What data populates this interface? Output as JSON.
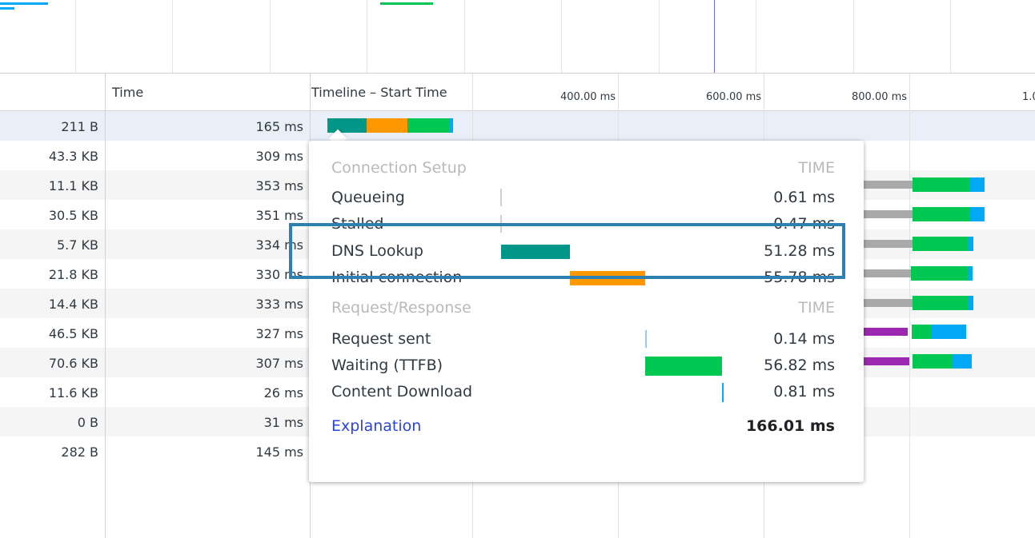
{
  "colors": {
    "queue": "#a9a9a9",
    "dns": "#009688",
    "initial_connection": "#ff9800",
    "ssl": "#9c27b0",
    "waiting": "#00c853",
    "download": "#03a9f4",
    "request": "#9ec8e6",
    "highlight": "#2e80b3",
    "link": "#2a45d8"
  },
  "header": {
    "time": "Time",
    "timeline": "Timeline – Start Time",
    "ticks": [
      "400.00 ms",
      "600.00 ms",
      "800.00 ms",
      "1.0"
    ]
  },
  "rows": [
    {
      "size": "211 B",
      "time": "165 ms"
    },
    {
      "size": "43.3 KB",
      "time": "309 ms"
    },
    {
      "size": "11.1 KB",
      "time": "353 ms"
    },
    {
      "size": "30.5 KB",
      "time": "351 ms"
    },
    {
      "size": "5.7 KB",
      "time": "334 ms"
    },
    {
      "size": "21.8 KB",
      "time": "330 ms"
    },
    {
      "size": "14.4 KB",
      "time": "333 ms"
    },
    {
      "size": "46.5 KB",
      "time": "327 ms"
    },
    {
      "size": "70.6 KB",
      "time": "307 ms"
    },
    {
      "size": "11.6 KB",
      "time": "26 ms"
    },
    {
      "size": "0 B",
      "time": "31 ms"
    },
    {
      "size": "282 B",
      "time": "145 ms"
    }
  ],
  "popup": {
    "connection_setup": {
      "title": "Connection Setup",
      "time_header": "TIME",
      "items": [
        {
          "label": "Queueing",
          "value": "0.61 ms"
        },
        {
          "label": "Stalled",
          "value": "0.47 ms"
        },
        {
          "label": "DNS Lookup",
          "value": "51.28 ms"
        },
        {
          "label": "Initial connection",
          "value": "55.78 ms"
        }
      ]
    },
    "request_response": {
      "title": "Request/Response",
      "time_header": "TIME",
      "items": [
        {
          "label": "Request sent",
          "value": "0.14 ms"
        },
        {
          "label": "Waiting (TTFB)",
          "value": "56.82 ms"
        },
        {
          "label": "Content Download",
          "value": "0.81 ms"
        }
      ]
    },
    "explanation": "Explanation",
    "total": "166.01 ms"
  }
}
